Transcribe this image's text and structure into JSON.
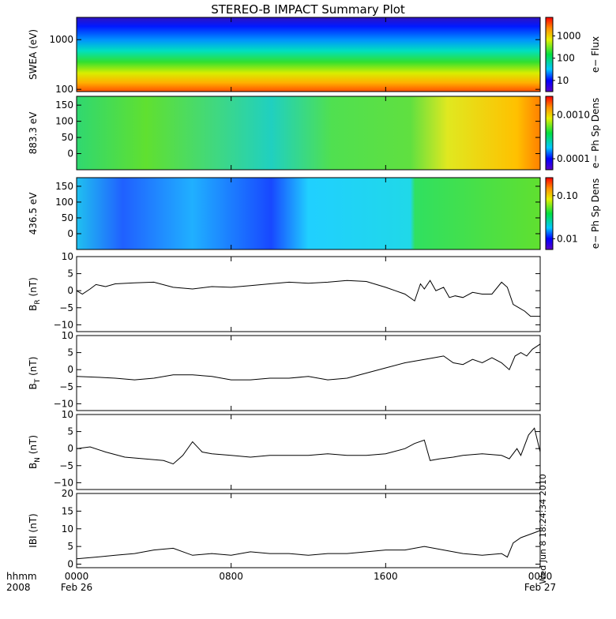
{
  "title": "STEREO-B IMPACT Summary Plot",
  "stamp": "Wed Jun  8 18:24:34 2010",
  "x_axis": {
    "row1_label": "hhmm",
    "row2_label": "2008",
    "ticks": [
      {
        "t": 0,
        "hhmm": "0000",
        "date": "Feb 26"
      },
      {
        "t": 8,
        "hhmm": "0800",
        "date": ""
      },
      {
        "t": 16,
        "hhmm": "1600",
        "date": ""
      },
      {
        "t": 24,
        "hhmm": "0000",
        "date": "Feb 27"
      }
    ]
  },
  "panels": [
    {
      "id": "swea",
      "kind": "spectrogram",
      "ylabel": "SWEA (eV)",
      "ytick_labels": [
        "1000",
        "100"
      ],
      "colorbar": {
        "label": "e− Flux",
        "tick_labels": [
          "1000",
          "100",
          "10"
        ]
      }
    },
    {
      "id": "pad883",
      "kind": "spectrogram",
      "ylabel": "883.3 eV",
      "ytick_labels": [
        "150",
        "100",
        "50",
        "0"
      ],
      "colorbar": {
        "label": "e− Ph Sp Dens",
        "tick_labels": [
          "0.0010",
          "0.0001"
        ]
      }
    },
    {
      "id": "pad436",
      "kind": "spectrogram",
      "ylabel": "436.5 eV",
      "ytick_labels": [
        "150",
        "100",
        "50",
        "0"
      ],
      "colorbar": {
        "label": "e− Ph Sp Dens",
        "tick_labels": [
          "0.10",
          "0.01"
        ]
      }
    },
    {
      "id": "br",
      "kind": "line",
      "ylabel_main": "B",
      "ylabel_sub": "R",
      "ylabel_unit": " (nT)",
      "ylim": [
        -12,
        10
      ],
      "ytick_labels": [
        "10",
        "5",
        "0",
        "−5",
        "−10"
      ]
    },
    {
      "id": "bt",
      "kind": "line",
      "ylabel_main": "B",
      "ylabel_sub": "T",
      "ylabel_unit": " (nT)",
      "ylim": [
        -12,
        10
      ],
      "ytick_labels": [
        "10",
        "5",
        "0",
        "−5",
        "−10"
      ]
    },
    {
      "id": "bn",
      "kind": "line",
      "ylabel_main": "B",
      "ylabel_sub": "N",
      "ylabel_unit": " (nT)",
      "ylim": [
        -12,
        10
      ],
      "ytick_labels": [
        "10",
        "5",
        "0",
        "−5",
        "−10"
      ]
    },
    {
      "id": "bmag",
      "kind": "line",
      "ylabel_main": "IBI (nT)",
      "ylabel_sub": "",
      "ylabel_unit": "",
      "ylim": [
        -1,
        20
      ],
      "ytick_labels": [
        "20",
        "15",
        "10",
        "5",
        "0"
      ]
    }
  ],
  "chart_data": [
    {
      "type": "line",
      "series_id": "br",
      "x_unit": "hours after 0000 Feb 26 2008",
      "ylabel": "B_R (nT)",
      "ylim": [
        -12,
        10
      ],
      "x": [
        0,
        0.3,
        0.7,
        1,
        1.5,
        2,
        3,
        4,
        5,
        6,
        7,
        8,
        9,
        10,
        11,
        12,
        13,
        14,
        15,
        16,
        16.5,
        17,
        17.5,
        17.8,
        18,
        18.3,
        18.6,
        19,
        19.3,
        19.6,
        20,
        20.5,
        21,
        21.5,
        22,
        22.3,
        22.6,
        22.9,
        23.2,
        23.5,
        24
      ],
      "y": [
        0,
        -1,
        0.5,
        1.8,
        1.2,
        2,
        2.3,
        2.5,
        1,
        0.5,
        1.2,
        1,
        1.5,
        2,
        2.5,
        2.2,
        2.5,
        3,
        2.7,
        1,
        0,
        -1,
        -3,
        2,
        0.5,
        3,
        0,
        1,
        -2,
        -1.5,
        -2,
        -0.5,
        -1,
        -1,
        2.5,
        1,
        -4,
        -5,
        -6,
        -7.5,
        -7.5
      ]
    },
    {
      "type": "line",
      "series_id": "bt",
      "x_unit": "hours after 0000 Feb 26 2008",
      "ylabel": "B_T (nT)",
      "ylim": [
        -12,
        10
      ],
      "x": [
        0,
        1,
        2,
        3,
        4,
        5,
        6,
        7,
        8,
        9,
        10,
        11,
        12,
        13,
        14,
        15,
        16,
        17,
        18,
        18.5,
        19,
        19.5,
        20,
        20.5,
        21,
        21.5,
        22,
        22.4,
        22.7,
        23,
        23.3,
        23.6,
        24
      ],
      "y": [
        -2,
        -2.2,
        -2.5,
        -3,
        -2.5,
        -1.5,
        -1.5,
        -2,
        -3,
        -3,
        -2.5,
        -2.5,
        -2,
        -3,
        -2.5,
        -1,
        0.5,
        2,
        3,
        3.5,
        4,
        2,
        1.5,
        3,
        2,
        3.5,
        2,
        0,
        4,
        5,
        4,
        6,
        7.5
      ]
    },
    {
      "type": "line",
      "series_id": "bn",
      "x_unit": "hours after 0000 Feb 26 2008",
      "ylabel": "B_N (nT)",
      "ylim": [
        -12,
        10
      ],
      "x": [
        0,
        0.7,
        1.5,
        2.5,
        3.5,
        4.5,
        5,
        5.5,
        6,
        6.5,
        7,
        8,
        9,
        10,
        11,
        12,
        13,
        14,
        15,
        16,
        17,
        17.5,
        18,
        18.3,
        18.8,
        19.5,
        20,
        21,
        22,
        22.4,
        22.8,
        23,
        23.4,
        23.7,
        24
      ],
      "y": [
        0,
        0.5,
        -1,
        -2.5,
        -3,
        -3.5,
        -4.5,
        -2,
        2,
        -1,
        -1.5,
        -2,
        -2.5,
        -2,
        -2,
        -2,
        -1.5,
        -2,
        -2,
        -1.5,
        0,
        1.5,
        2.5,
        -3.5,
        -3,
        -2.5,
        -2,
        -1.5,
        -2,
        -3,
        0,
        -2,
        4,
        6,
        -1
      ]
    },
    {
      "type": "line",
      "series_id": "bmag",
      "x_unit": "hours after 0000 Feb 26 2008",
      "ylabel": "IBI (nT)",
      "ylim": [
        -1,
        20
      ],
      "x": [
        0,
        1,
        2,
        3,
        4,
        5,
        6,
        7,
        8,
        9,
        10,
        11,
        12,
        13,
        14,
        15,
        16,
        17,
        18,
        19,
        20,
        21,
        22,
        22.3,
        22.6,
        23,
        23.5,
        24
      ],
      "y": [
        1.5,
        2,
        2.5,
        3,
        4,
        4.5,
        2.5,
        3,
        2.5,
        3.5,
        3,
        3,
        2.5,
        3,
        3,
        3.5,
        4,
        4,
        5,
        4,
        3,
        2.5,
        3,
        2,
        6,
        7.5,
        8.5,
        9.5
      ]
    }
  ]
}
